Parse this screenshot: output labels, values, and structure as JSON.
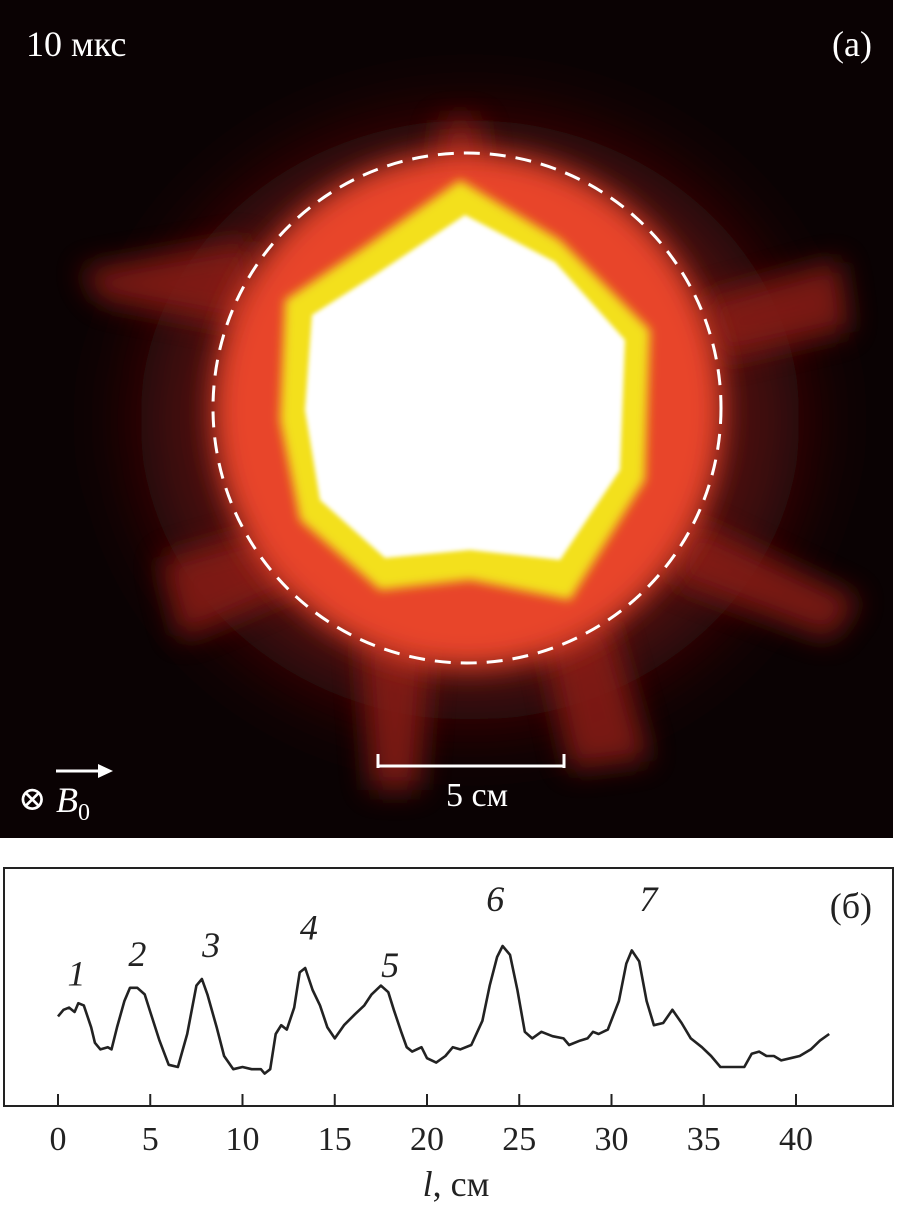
{
  "panel_a": {
    "time_label": "10 мкс",
    "panel_label": "(a)",
    "scale_label": "5 см",
    "field_symbol": "⊗",
    "field_label": "B",
    "field_subscript": "0",
    "colors": {
      "background": "#0a0203",
      "outer_glow": "#e8442a",
      "mid_ring": "#f3e01a",
      "core": "#ffffff",
      "dashed_circle": "#ffffff"
    }
  },
  "chart_data": {
    "type": "line",
    "panel_label": "(б)",
    "xlabel_var": "l",
    "xlabel_unit": ", см",
    "ylabel": "",
    "xlim": [
      -3,
      46
    ],
    "ylim": [
      0,
      1
    ],
    "x_ticks": [
      0,
      5,
      10,
      15,
      20,
      25,
      30,
      35,
      40
    ],
    "peak_labels": [
      {
        "text": "1",
        "x": 1.0,
        "y": 0.52
      },
      {
        "text": "2",
        "x": 4.3,
        "y": 0.61
      },
      {
        "text": "3",
        "x": 8.3,
        "y": 0.65
      },
      {
        "text": "4",
        "x": 13.6,
        "y": 0.73
      },
      {
        "text": "5",
        "x": 18.0,
        "y": 0.56
      },
      {
        "text": "6",
        "x": 23.7,
        "y": 0.86
      },
      {
        "text": "7",
        "x": 32.0,
        "y": 0.86
      }
    ],
    "series": [
      {
        "points": [
          [
            0.0,
            0.38
          ],
          [
            0.3,
            0.41
          ],
          [
            0.6,
            0.42
          ],
          [
            0.9,
            0.4
          ],
          [
            1.1,
            0.44
          ],
          [
            1.4,
            0.43
          ],
          [
            1.8,
            0.33
          ],
          [
            2.0,
            0.26
          ],
          [
            2.3,
            0.23
          ],
          [
            2.7,
            0.24
          ],
          [
            2.9,
            0.23
          ],
          [
            3.2,
            0.33
          ],
          [
            3.6,
            0.45
          ],
          [
            3.9,
            0.51
          ],
          [
            4.3,
            0.51
          ],
          [
            4.7,
            0.48
          ],
          [
            5.0,
            0.4
          ],
          [
            5.5,
            0.27
          ],
          [
            6.0,
            0.16
          ],
          [
            6.5,
            0.15
          ],
          [
            7.0,
            0.3
          ],
          [
            7.5,
            0.52
          ],
          [
            7.8,
            0.55
          ],
          [
            8.1,
            0.48
          ],
          [
            8.6,
            0.33
          ],
          [
            9.0,
            0.2
          ],
          [
            9.5,
            0.14
          ],
          [
            10.0,
            0.15
          ],
          [
            10.5,
            0.14
          ],
          [
            11.0,
            0.14
          ],
          [
            11.2,
            0.12
          ],
          [
            11.5,
            0.14
          ],
          [
            11.8,
            0.3
          ],
          [
            12.1,
            0.34
          ],
          [
            12.4,
            0.32
          ],
          [
            12.8,
            0.42
          ],
          [
            13.1,
            0.58
          ],
          [
            13.4,
            0.6
          ],
          [
            13.8,
            0.5
          ],
          [
            14.2,
            0.43
          ],
          [
            14.6,
            0.33
          ],
          [
            15.0,
            0.28
          ],
          [
            15.5,
            0.34
          ],
          [
            16.1,
            0.39
          ],
          [
            16.6,
            0.43
          ],
          [
            17.0,
            0.48
          ],
          [
            17.5,
            0.52
          ],
          [
            17.9,
            0.49
          ],
          [
            18.2,
            0.41
          ],
          [
            18.6,
            0.31
          ],
          [
            18.9,
            0.24
          ],
          [
            19.2,
            0.22
          ],
          [
            19.7,
            0.24
          ],
          [
            20.0,
            0.19
          ],
          [
            20.5,
            0.17
          ],
          [
            21.0,
            0.2
          ],
          [
            21.4,
            0.24
          ],
          [
            21.8,
            0.23
          ],
          [
            22.4,
            0.25
          ],
          [
            23.0,
            0.36
          ],
          [
            23.4,
            0.52
          ],
          [
            23.8,
            0.65
          ],
          [
            24.1,
            0.7
          ],
          [
            24.5,
            0.66
          ],
          [
            24.9,
            0.5
          ],
          [
            25.3,
            0.31
          ],
          [
            25.7,
            0.28
          ],
          [
            26.2,
            0.31
          ],
          [
            26.8,
            0.29
          ],
          [
            27.4,
            0.28
          ],
          [
            27.7,
            0.25
          ],
          [
            28.3,
            0.27
          ],
          [
            28.7,
            0.28
          ],
          [
            29.0,
            0.31
          ],
          [
            29.3,
            0.3
          ],
          [
            29.8,
            0.32
          ],
          [
            30.4,
            0.45
          ],
          [
            30.8,
            0.62
          ],
          [
            31.1,
            0.68
          ],
          [
            31.5,
            0.63
          ],
          [
            31.9,
            0.45
          ],
          [
            32.3,
            0.34
          ],
          [
            32.8,
            0.35
          ],
          [
            33.3,
            0.41
          ],
          [
            33.8,
            0.35
          ],
          [
            34.3,
            0.28
          ],
          [
            34.9,
            0.24
          ],
          [
            35.4,
            0.2
          ],
          [
            35.9,
            0.15
          ],
          [
            36.5,
            0.15
          ],
          [
            37.2,
            0.15
          ],
          [
            37.6,
            0.21
          ],
          [
            38.0,
            0.22
          ],
          [
            38.4,
            0.2
          ],
          [
            38.8,
            0.2
          ],
          [
            39.2,
            0.18
          ],
          [
            39.7,
            0.19
          ],
          [
            40.2,
            0.2
          ],
          [
            40.8,
            0.23
          ],
          [
            41.3,
            0.27
          ],
          [
            41.8,
            0.3
          ]
        ]
      }
    ]
  }
}
